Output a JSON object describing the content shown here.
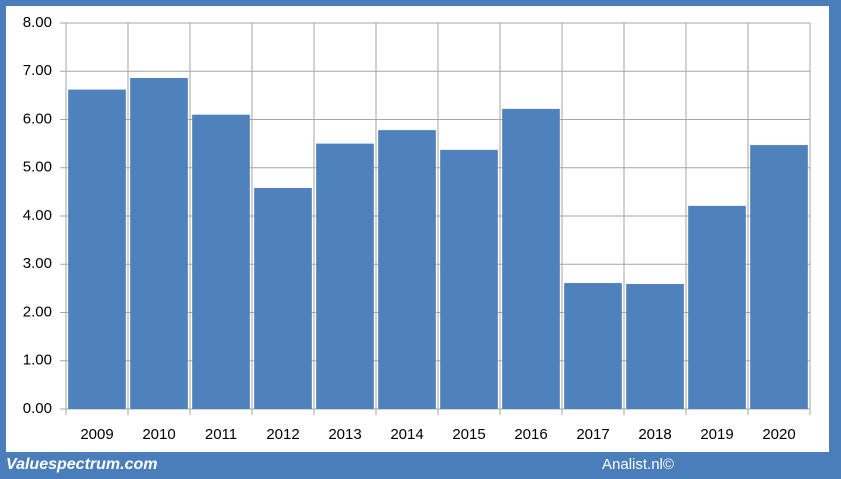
{
  "chart_data": {
    "type": "bar",
    "categories": [
      "2009",
      "2010",
      "2011",
      "2012",
      "2013",
      "2014",
      "2015",
      "2016",
      "2017",
      "2018",
      "2019",
      "2020"
    ],
    "values": [
      6.62,
      6.86,
      6.1,
      4.58,
      5.5,
      5.78,
      5.37,
      6.22,
      2.61,
      2.59,
      4.21,
      5.47
    ],
    "color": "#4f81bd",
    "ylim": [
      0,
      8
    ],
    "yticks": [
      {
        "value": 0,
        "label": "0.00"
      },
      {
        "value": 1,
        "label": "1.00"
      },
      {
        "value": 2,
        "label": "2.00"
      },
      {
        "value": 3,
        "label": "3.00"
      },
      {
        "value": 4,
        "label": "4.00"
      },
      {
        "value": 5,
        "label": "5.00"
      },
      {
        "value": 6,
        "label": "6.00"
      },
      {
        "value": 7,
        "label": "7.00"
      },
      {
        "value": 8,
        "label": "8.00"
      }
    ],
    "grid": true,
    "source": "Valuespectrum.com",
    "credit": "Analist.nl©"
  }
}
